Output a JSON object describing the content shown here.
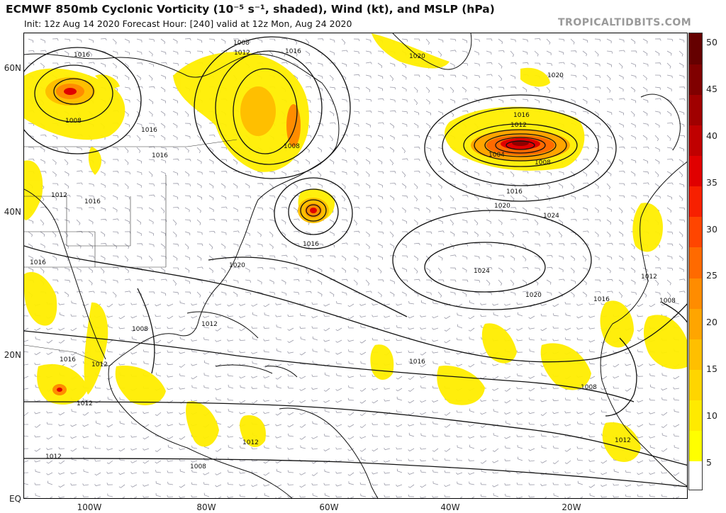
{
  "header": {
    "title": "ECMWF 850mb Cyclonic Vorticity (10⁻⁵ s⁻¹, shaded), Wind (kt), and MSLP (hPa)",
    "subtitle": "Init: 12z Aug 14 2020   Forecast Hour: [240]   valid at 12z Mon, Aug 24 2020",
    "brand": "TROPICALTIDBITS.COM"
  },
  "axes": {
    "lat_labels": [
      "60N",
      "40N",
      "20N",
      "EQ"
    ],
    "lon_labels": [
      "100W",
      "80W",
      "60W",
      "40W",
      "20W"
    ]
  },
  "colorbar": {
    "labels": [
      "50",
      "45",
      "40",
      "35",
      "30",
      "25",
      "20",
      "15",
      "10",
      "5"
    ],
    "colors": [
      "#ffff00",
      "#ffea00",
      "#ffd500",
      "#ffbf00",
      "#ffa500",
      "#ff8c00",
      "#ff6a00",
      "#ff4500",
      "#f72000",
      "#e00000",
      "#c00000",
      "#a00000",
      "#800000",
      "#650000"
    ]
  },
  "pressure_labels": [
    "1016",
    "1008",
    "1016",
    "1008",
    "1016",
    "1012",
    "1008",
    "1020",
    "1020",
    "1016",
    "1012",
    "1008",
    "1004",
    "1016",
    "1020",
    "1024",
    "1024",
    "1020",
    "1016",
    "1016",
    "1020",
    "1016",
    "1008",
    "1008",
    "1012",
    "1016",
    "1012",
    "1016",
    "1016",
    "1012",
    "1008",
    "1016",
    "1012",
    "1012",
    "1012",
    "1012",
    "1008",
    "1012"
  ]
}
